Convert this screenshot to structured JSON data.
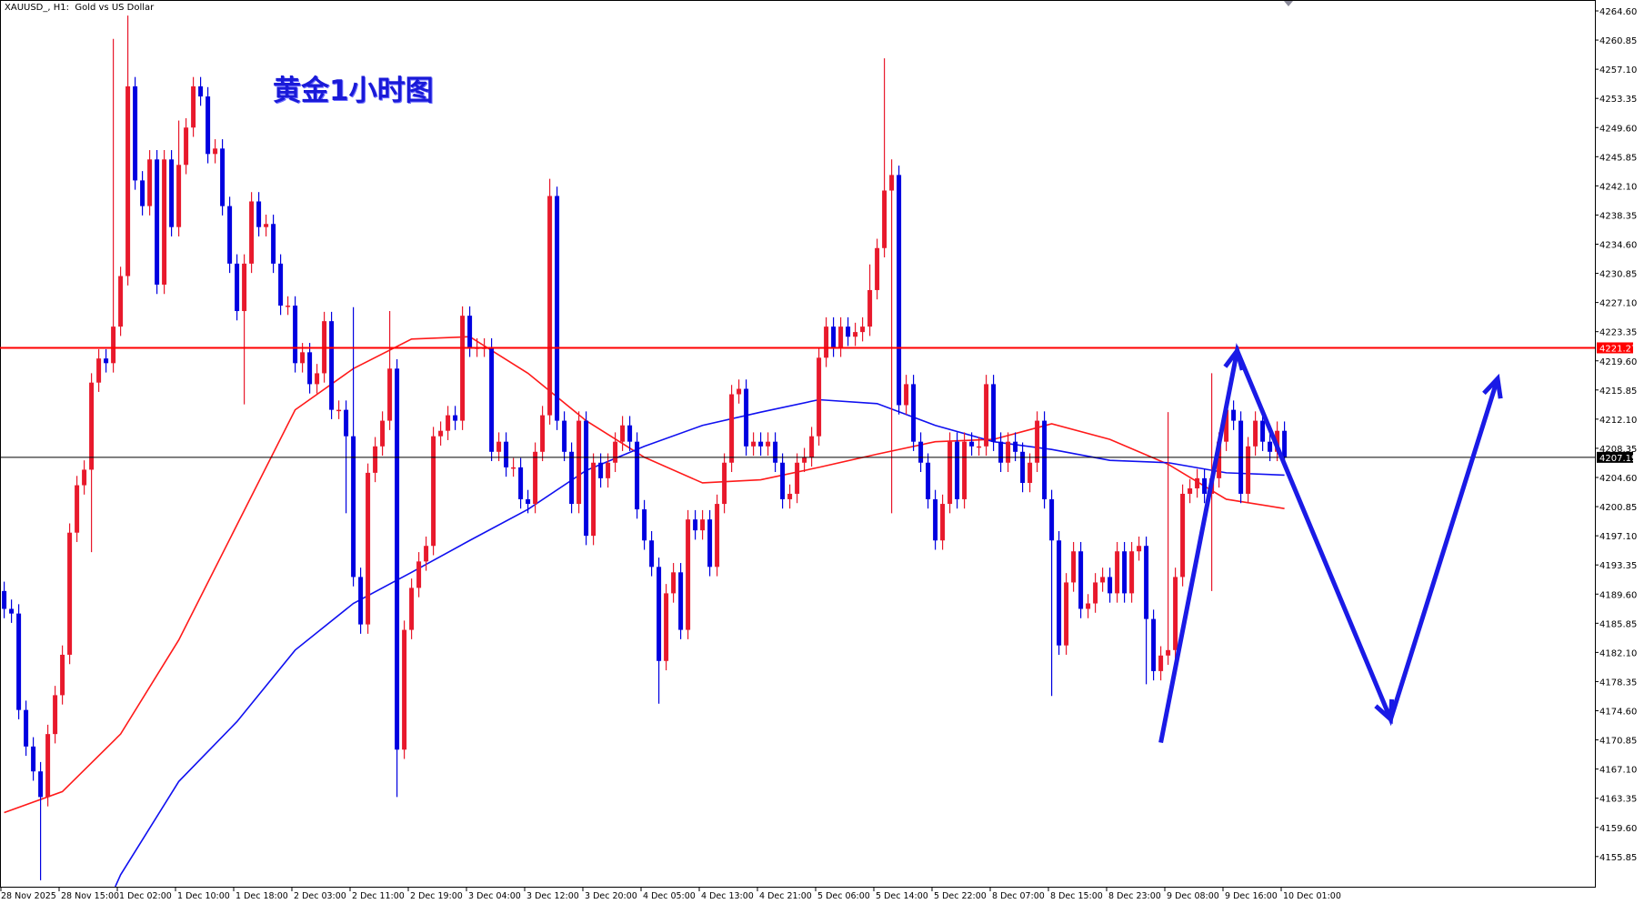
{
  "header": {
    "symbol_line": "XAUUSD_, H1:  Gold vs US Dollar",
    "overlay_title": "黄金1小时图"
  },
  "colors": {
    "bull": "#e8192c",
    "bear": "#0000e0",
    "ma_fast": "#ff1a1a",
    "ma_slow": "#1010f0",
    "resistance_line": "#ff0000",
    "bid_line": "#000000",
    "annotation": "#1a1ae6"
  },
  "chart_data": {
    "type": "candlestick",
    "title": "XAUUSD_, H1:  Gold vs US Dollar",
    "ylim": [
      4152.0,
      4266.0
    ],
    "grid": false,
    "bullish_color": "red",
    "bearish_color": "blue",
    "first_open": 4190.0,
    "close": [
      4187.7,
      4187.1,
      4174.7,
      4170.0,
      4166.8,
      4163.5,
      4171.6,
      4176.6,
      4181.8,
      4197.5,
      4203.6,
      4205.6,
      4216.8,
      4219.9,
      4219.3,
      4224.0,
      4230.5,
      4254.9,
      4242.8,
      4239.5,
      4245.5,
      4229.4,
      4245.5,
      4236.8,
      4244.8,
      4249.6,
      4254.9,
      4253.6,
      4246.2,
      4246.9,
      4239.5,
      4232.1,
      4226.0,
      4232.1,
      4240.1,
      4236.8,
      4237.2,
      4232.1,
      4226.7,
      4226.7,
      4219.3,
      4220.7,
      4216.6,
      4218.0,
      4224.7,
      4213.3,
      4213.3,
      4209.9,
      4191.8,
      4185.7,
      4205.2,
      4208.6,
      4211.9,
      4218.6,
      4169.6,
      4185.0,
      4190.4,
      4193.8,
      4195.8,
      4209.9,
      4210.6,
      4212.6,
      4211.9,
      4225.4,
      4221.3,
      4221.3,
      4221.3,
      4207.9,
      4209.2,
      4205.9,
      4205.9,
      4201.8,
      4201.2,
      4207.9,
      4212.6,
      4240.8,
      4211.9,
      4207.9,
      4201.2,
      4211.9,
      4197.1,
      4206.5,
      4204.5,
      4206.5,
      4209.2,
      4211.3,
      4209.2,
      4200.5,
      4196.5,
      4193.1,
      4181.0,
      4189.7,
      4192.4,
      4185.0,
      4199.2,
      4197.8,
      4199.2,
      4193.1,
      4201.2,
      4206.5,
      4215.3,
      4216.0,
      4208.6,
      4209.2,
      4208.6,
      4209.2,
      4206.5,
      4201.8,
      4202.5,
      4206.5,
      4207.2,
      4209.9,
      4220.0,
      4224.0,
      4221.3,
      4224.0,
      4222.7,
      4223.3,
      4224.0,
      4228.7,
      4234.1,
      4241.5,
      4243.5,
      4213.9,
      4216.6,
      4209.2,
      4206.5,
      4201.8,
      4196.5,
      4201.2,
      4209.2,
      4201.8,
      4209.2,
      4208.6,
      4208.6,
      4216.6,
      4209.2,
      4206.5,
      4209.2,
      4207.9,
      4203.9,
      4206.5,
      4211.9,
      4201.8,
      4196.5,
      4183.0,
      4191.1,
      4195.1,
      4187.7,
      4188.4,
      4191.1,
      4191.8,
      4189.7,
      4195.1,
      4189.7,
      4195.1,
      4195.8,
      4186.4,
      4179.7,
      4181.7,
      4182.4,
      4191.8,
      4202.5,
      4203.2,
      4204.5,
      4202.5,
      4204.5,
      4209.2,
      4213.3,
      4211.9,
      4202.5,
      4208.6,
      4211.9,
      4209.2,
      4207.9,
      4210.6,
      4207.19
    ],
    "notable_highs": {
      "15": 4261.0,
      "17": 4264.0,
      "24": 4250.5,
      "48": 4226.5,
      "53": 4226.0,
      "75": 4243.0,
      "119": 4232.0,
      "121": 4258.5,
      "122": 4245.5,
      "160": 4213.0,
      "166": 4218.0
    },
    "notable_lows": {
      "5": 4152.8,
      "12": 4195.0,
      "33": 4214.0,
      "47": 4200.0,
      "54": 4163.5,
      "90": 4175.5,
      "122": 4200.0,
      "144": 4176.5,
      "157": 4178.0,
      "166": 4190.0
    },
    "moving_averages": [
      {
        "color": "red",
        "values_every_8_bars": [
          4161.5,
          4164.2,
          4171.6,
          4183.7,
          4198.5,
          4213.3,
          4218.6,
          4222.4,
          4222.7,
          4218.0,
          4211.9,
          4207.2,
          4203.9,
          4204.3,
          4205.9,
          4207.6,
          4209.2,
          4209.5,
          4211.5,
          4209.5,
          4206.3,
          4201.8,
          4200.6
        ]
      },
      {
        "color": "blue",
        "values_every_8_bars": [
          null,
          4136.7,
          4153.5,
          4165.5,
          4173.2,
          4182.4,
          4188.4,
          4192.4,
          4196.5,
          4200.5,
          4205.5,
          4208.6,
          4211.3,
          4213.0,
          4214.6,
          4214.1,
          4211.3,
          4209.2,
          4208.2,
          4206.8,
          4206.5,
          4205.2,
          4204.9
        ]
      }
    ],
    "horizontal_lines": [
      {
        "price": 4221.27,
        "label": "4221.27",
        "color": "red"
      },
      {
        "price": 4207.19,
        "label": "4207.19",
        "color": "black"
      }
    ],
    "annotation_path_bar_price": [
      [
        159,
        4170.5
      ],
      [
        169.5,
        4220.9
      ],
      [
        190.6,
        4173.5
      ],
      [
        205.3,
        4217.3
      ]
    ],
    "y_ticks": [
      "4264.60",
      "4260.85",
      "4257.10",
      "4253.35",
      "4249.60",
      "4245.85",
      "4242.10",
      "4238.35",
      "4234.60",
      "4230.85",
      "4227.10",
      "4223.35",
      "4219.60",
      "4215.85",
      "4212.10",
      "4208.35",
      "4204.60",
      "4200.85",
      "4197.10",
      "4193.35",
      "4189.60",
      "4185.85",
      "4182.10",
      "4178.35",
      "4174.60",
      "4170.85",
      "4167.10",
      "4163.35",
      "4159.60",
      "4155.85"
    ],
    "x_ticks": [
      "28 Nov 2025",
      "28 Nov 15:00",
      "1 Dec 02:00",
      "1 Dec 10:00",
      "1 Dec 18:00",
      "2 Dec 03:00",
      "2 Dec 11:00",
      "2 Dec 19:00",
      "3 Dec 04:00",
      "3 Dec 12:00",
      "3 Dec 20:00",
      "4 Dec 05:00",
      "4 Dec 13:00",
      "4 Dec 21:00",
      "5 Dec 06:00",
      "5 Dec 14:00",
      "5 Dec 22:00",
      "8 Dec 07:00",
      "8 Dec 15:00",
      "8 Dec 23:00",
      "9 Dec 08:00",
      "9 Dec 16:00",
      "10 Dec 01:00"
    ]
  }
}
